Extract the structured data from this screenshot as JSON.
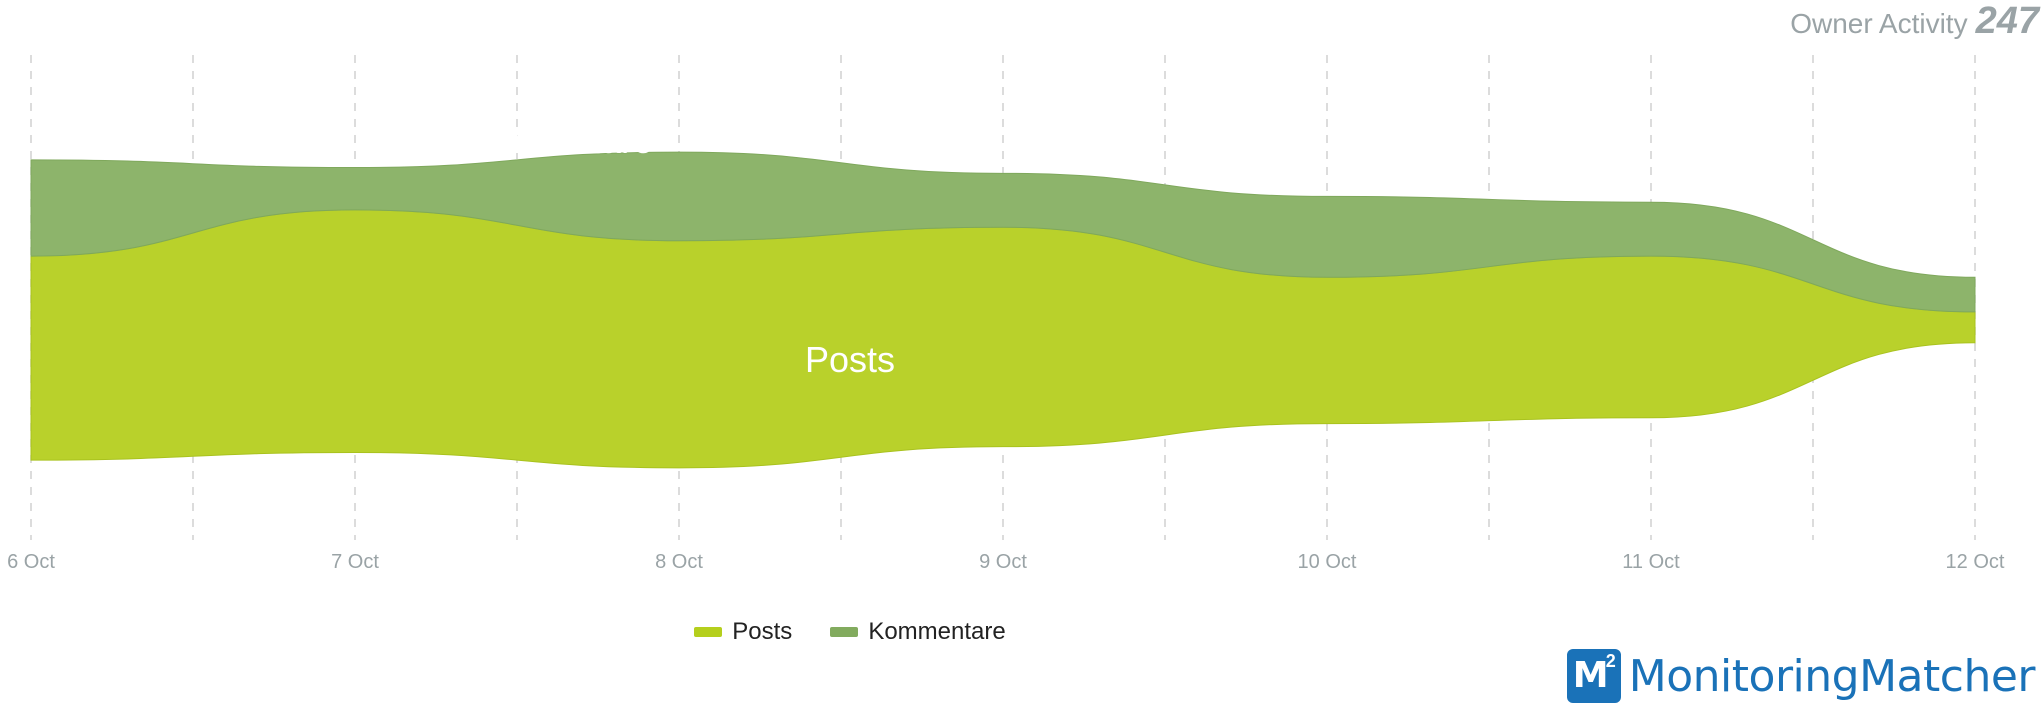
{
  "header": {
    "title": "Owner Activity",
    "count": "247"
  },
  "colors": {
    "posts": "#b9d12b",
    "kommentare": "#8db46b",
    "posts_legend": "#b5cf1d",
    "kommentare_legend": "#82ab5e",
    "grid": "#d0d0d0",
    "logo": "#1a72b8"
  },
  "legend": {
    "posts": "Posts",
    "kommentare": "Kommentare"
  },
  "logo": {
    "mark": "M",
    "superscript": "2",
    "text": "MonitoringMatcher"
  },
  "chart_data": {
    "type": "area",
    "subtype": "streamgraph",
    "x": [
      "6 Oct",
      "7 Oct",
      "8 Oct",
      "9 Oct",
      "10 Oct",
      "11 Oct",
      "12 Oct"
    ],
    "series": [
      {
        "name": "Posts",
        "values": [
          53,
          63,
          59,
          57,
          38,
          42,
          8
        ]
      },
      {
        "name": "Kommentare",
        "values": [
          25,
          11,
          23,
          14,
          21,
          14,
          9
        ]
      }
    ],
    "grid": "vertical-dashed",
    "legend_position": "bottom-center"
  }
}
